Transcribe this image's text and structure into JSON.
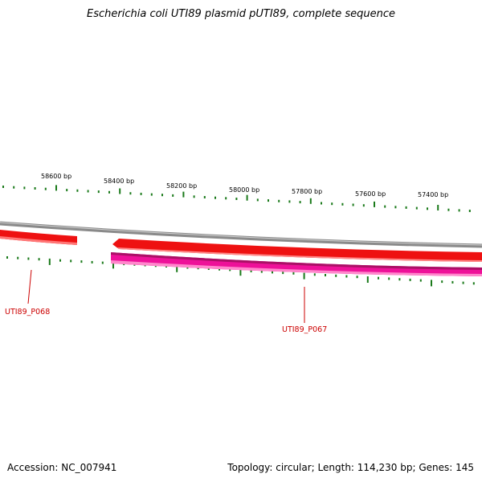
{
  "title": "Escherichia coli UTI89 plasmid pUTI89, complete sequence",
  "footer": {
    "accession": "Accession: NC_007941",
    "summary": "Topology: circular; Length: 114,230 bp; Genes: 145"
  },
  "colors": {
    "tick": "#1a7a1a",
    "backbone": "#8a8a8a",
    "gene_forward": "#ee1111",
    "gene_reverse": "#ee1199",
    "label": "#cc0000"
  },
  "scale_labels": [
    "58600 bp",
    "58400 bp",
    "58200 bp",
    "58000 bp",
    "57800 bp",
    "57600 bp",
    "57400 bp"
  ],
  "genes": [
    {
      "name": "UTI89_P068",
      "strand": "forward"
    },
    {
      "name": "UTI89_P067",
      "strand": "reverse"
    }
  ]
}
